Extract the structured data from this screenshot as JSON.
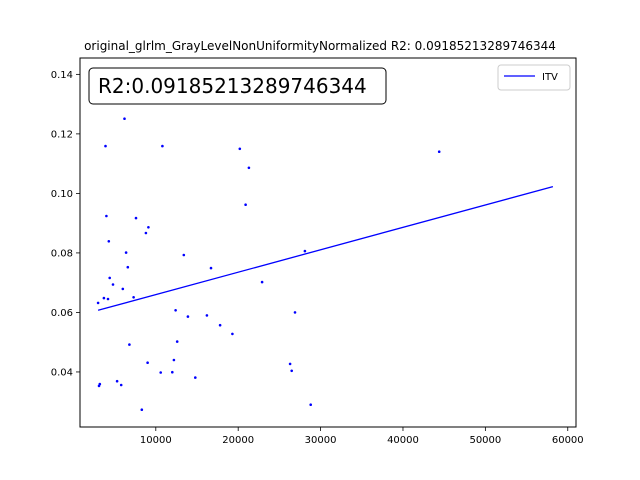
{
  "chart_data": {
    "type": "scatter",
    "title": "original_glrlm_GrayLevelNonUniformityNormalized R2: 0.09185213289746344",
    "annotation": "R2:0.09185213289746344",
    "xlabel": "",
    "ylabel": "",
    "xlim": [
      800,
      61000
    ],
    "ylim": [
      0.0215,
      0.1455
    ],
    "x_ticks": [
      10000,
      20000,
      30000,
      40000,
      50000,
      60000
    ],
    "y_ticks": [
      0.04,
      0.06,
      0.08,
      0.1,
      0.12,
      0.14
    ],
    "y_tick_labels": [
      "0.04",
      "0.06",
      "0.08",
      "0.10",
      "0.12",
      "0.14"
    ],
    "grid": false,
    "legend_position": "top-right",
    "colors": {
      "series": "#0000ff"
    },
    "series": [
      {
        "name": "ITV",
        "kind": "line",
        "x": [
          3000,
          58200
        ],
        "y": [
          0.0607,
          0.1023
        ]
      },
      {
        "kind": "scatter",
        "x": [
          3000,
          3200,
          3100,
          3700,
          3900,
          4000,
          4200,
          4300,
          4400,
          4800,
          5300,
          5800,
          6000,
          6200,
          6400,
          6600,
          6800,
          7300,
          7600,
          8300,
          8800,
          9100,
          9000,
          10600,
          10800,
          12000,
          12200,
          12400,
          12600,
          13400,
          13900,
          14800,
          16200,
          16700,
          17800,
          19300,
          20200,
          20900,
          21300,
          22900,
          26300,
          26500,
          26900,
          28100,
          28800,
          44400
        ],
        "y": [
          0.0632,
          0.0359,
          0.0353,
          0.0648,
          0.1159,
          0.0924,
          0.0645,
          0.0839,
          0.0716,
          0.0694,
          0.0369,
          0.0356,
          0.0679,
          0.1251,
          0.0801,
          0.0752,
          0.0492,
          0.0651,
          0.0917,
          0.0273,
          0.0867,
          0.0886,
          0.0431,
          0.0398,
          0.1159,
          0.0399,
          0.044,
          0.0607,
          0.0502,
          0.0793,
          0.0586,
          0.0381,
          0.059,
          0.0749,
          0.0557,
          0.0528,
          0.115,
          0.0962,
          0.1086,
          0.0702,
          0.0427,
          0.0404,
          0.06,
          0.0806,
          0.029,
          0.114
        ]
      }
    ]
  }
}
